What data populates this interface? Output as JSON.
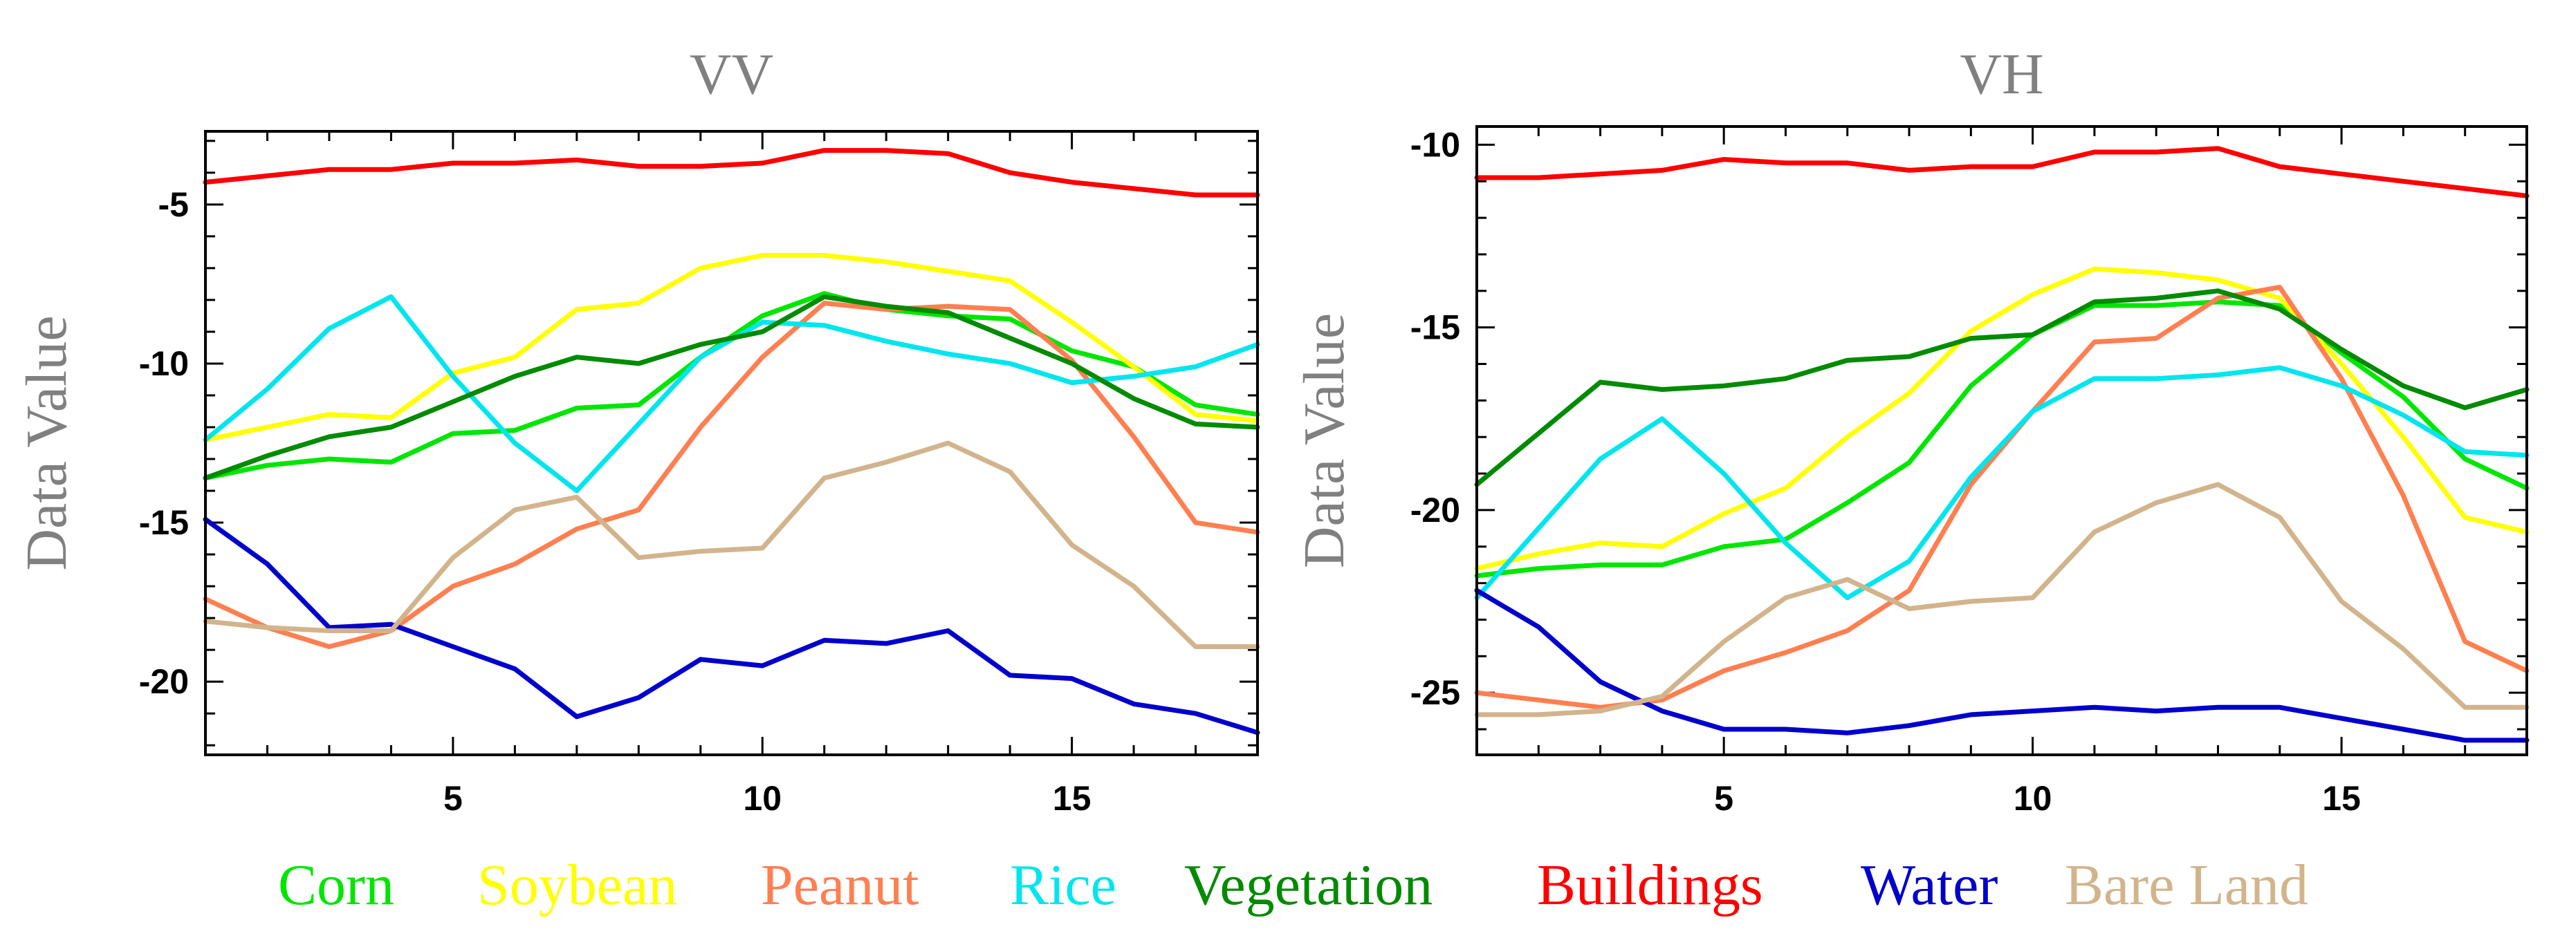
{
  "chart_data": [
    {
      "type": "line",
      "title": "VV",
      "xlabel": "",
      "ylabel": "Data Value",
      "xlim": [
        1,
        18
      ],
      "ylim": [
        -22.3,
        -2.7
      ],
      "xticks": [
        5,
        10,
        15
      ],
      "yticks": [
        -5,
        -10,
        -15,
        -20
      ],
      "x": [
        1,
        2,
        3,
        4,
        5,
        6,
        7,
        8,
        9,
        10,
        11,
        12,
        13,
        14,
        15,
        16,
        17,
        18
      ],
      "series": [
        {
          "name": "Corn",
          "color": "#00e600",
          "values": [
            -13.6,
            -13.2,
            -13.0,
            -13.1,
            -12.2,
            -12.1,
            -11.4,
            -11.3,
            -9.8,
            -8.5,
            -7.8,
            -8.3,
            -8.5,
            -8.6,
            -9.6,
            -10.1,
            -11.3,
            -11.6
          ]
        },
        {
          "name": "Soybean",
          "color": "#ffff00",
          "values": [
            -12.4,
            -12.0,
            -11.6,
            -11.7,
            -10.3,
            -9.8,
            -8.3,
            -8.1,
            -7.0,
            -6.6,
            -6.6,
            -6.8,
            -7.1,
            -7.4,
            -8.7,
            -10.1,
            -11.6,
            -11.8
          ]
        },
        {
          "name": "Peanut",
          "color": "#ff7f50",
          "values": [
            -17.4,
            -18.3,
            -18.9,
            -18.4,
            -17.0,
            -16.3,
            -15.2,
            -14.6,
            -12.0,
            -9.8,
            -8.1,
            -8.3,
            -8.2,
            -8.3,
            -9.9,
            -12.3,
            -15.0,
            -15.3
          ]
        },
        {
          "name": "Rice",
          "color": "#00e5ee",
          "values": [
            -12.4,
            -10.8,
            -8.9,
            -7.9,
            -10.4,
            -12.5,
            -14.0,
            -11.9,
            -9.8,
            -8.7,
            -8.8,
            -9.3,
            -9.7,
            -10.0,
            -10.6,
            -10.4,
            -10.1,
            -9.4
          ]
        },
        {
          "name": "Vegetation",
          "color": "#008b00",
          "values": [
            -13.6,
            -12.9,
            -12.3,
            -12.0,
            -11.2,
            -10.4,
            -9.8,
            -10.0,
            -9.4,
            -9.0,
            -7.9,
            -8.2,
            -8.4,
            -9.2,
            -10.0,
            -11.1,
            -11.9,
            -12.0
          ]
        },
        {
          "name": "Buildings",
          "color": "#ff0000",
          "values": [
            -4.3,
            -4.1,
            -3.9,
            -3.9,
            -3.7,
            -3.7,
            -3.6,
            -3.8,
            -3.8,
            -3.7,
            -3.3,
            -3.3,
            -3.4,
            -4.0,
            -4.3,
            -4.5,
            -4.7,
            -4.7
          ]
        },
        {
          "name": "Water",
          "color": "#0000cd",
          "values": [
            -14.9,
            -16.3,
            -18.3,
            -18.2,
            -18.9,
            -19.6,
            -21.1,
            -20.5,
            -19.3,
            -19.5,
            -18.7,
            -18.8,
            -18.4,
            -19.8,
            -19.9,
            -20.7,
            -21.0,
            -21.6
          ]
        },
        {
          "name": "Bare Land",
          "color": "#d2b48c",
          "values": [
            -18.1,
            -18.3,
            -18.4,
            -18.4,
            -16.1,
            -14.6,
            -14.2,
            -16.1,
            -15.9,
            -15.8,
            -13.6,
            -13.1,
            -12.5,
            -13.4,
            -15.7,
            -17.0,
            -18.9,
            -18.9
          ]
        }
      ]
    },
    {
      "type": "line",
      "title": "VH",
      "xlabel": "",
      "ylabel": "Data Value",
      "xlim": [
        1,
        18
      ],
      "ylim": [
        -26.7,
        -9.5
      ],
      "xticks": [
        5,
        10,
        15
      ],
      "yticks": [
        -10,
        -15,
        -20,
        -25
      ],
      "x": [
        1,
        2,
        3,
        4,
        5,
        6,
        7,
        8,
        9,
        10,
        11,
        12,
        13,
        14,
        15,
        16,
        17,
        18
      ],
      "series": [
        {
          "name": "Corn",
          "color": "#00e600",
          "values": [
            -21.8,
            -21.6,
            -21.5,
            -21.5,
            -21.0,
            -20.8,
            -19.8,
            -18.7,
            -16.6,
            -15.2,
            -14.4,
            -14.4,
            -14.3,
            -14.4,
            -15.7,
            -16.9,
            -18.6,
            -19.4
          ]
        },
        {
          "name": "Soybean",
          "color": "#ffff00",
          "values": [
            -21.6,
            -21.2,
            -20.9,
            -21.0,
            -20.1,
            -19.4,
            -18.0,
            -16.8,
            -15.1,
            -14.1,
            -13.4,
            -13.5,
            -13.7,
            -14.2,
            -16.0,
            -18.0,
            -20.2,
            -20.6
          ]
        },
        {
          "name": "Peanut",
          "color": "#ff7f50",
          "values": [
            -25.0,
            -25.2,
            -25.4,
            -25.2,
            -24.4,
            -23.9,
            -23.3,
            -22.2,
            -19.3,
            -17.3,
            -15.4,
            -15.3,
            -14.2,
            -13.9,
            -16.4,
            -19.6,
            -23.6,
            -24.4
          ]
        },
        {
          "name": "Rice",
          "color": "#00e5ee",
          "values": [
            -22.4,
            -20.5,
            -18.6,
            -17.5,
            -19.0,
            -20.9,
            -22.4,
            -21.4,
            -19.1,
            -17.3,
            -16.4,
            -16.4,
            -16.3,
            -16.1,
            -16.6,
            -17.4,
            -18.4,
            -18.5
          ]
        },
        {
          "name": "Vegetation",
          "color": "#008b00",
          "values": [
            -19.3,
            -17.9,
            -16.5,
            -16.7,
            -16.6,
            -16.4,
            -15.9,
            -15.8,
            -15.3,
            -15.2,
            -14.3,
            -14.2,
            -14.0,
            -14.5,
            -15.6,
            -16.6,
            -17.2,
            -16.7
          ]
        },
        {
          "name": "Buildings",
          "color": "#ff0000",
          "values": [
            -10.9,
            -10.9,
            -10.8,
            -10.7,
            -10.4,
            -10.5,
            -10.5,
            -10.7,
            -10.6,
            -10.6,
            -10.2,
            -10.2,
            -10.1,
            -10.6,
            -10.8,
            -11.0,
            -11.2,
            -11.4
          ]
        },
        {
          "name": "Water",
          "color": "#0000cd",
          "values": [
            -22.2,
            -23.2,
            -24.7,
            -25.5,
            -26.0,
            -26.0,
            -26.1,
            -25.9,
            -25.6,
            -25.5,
            -25.4,
            -25.5,
            -25.4,
            -25.4,
            -25.7,
            -26.0,
            -26.3,
            -26.3
          ]
        },
        {
          "name": "Bare Land",
          "color": "#d2b48c",
          "values": [
            -25.6,
            -25.6,
            -25.5,
            -25.1,
            -23.6,
            -22.4,
            -21.9,
            -22.7,
            -22.5,
            -22.4,
            -20.6,
            -19.8,
            -19.3,
            -20.2,
            -22.5,
            -23.8,
            -25.4,
            -25.4
          ]
        }
      ]
    }
  ],
  "legend": [
    {
      "label": "Corn",
      "color": "#00e600"
    },
    {
      "label": "Soybean",
      "color": "#ffff00"
    },
    {
      "label": "Peanut",
      "color": "#ff7f50"
    },
    {
      "label": "Rice",
      "color": "#00e5ee"
    },
    {
      "label": "Vegetation",
      "color": "#008b00"
    },
    {
      "label": "Buildings",
      "color": "#ff0000"
    },
    {
      "label": "Water",
      "color": "#0000cd"
    },
    {
      "label": "Bare Land",
      "color": "#d2b48c"
    }
  ]
}
